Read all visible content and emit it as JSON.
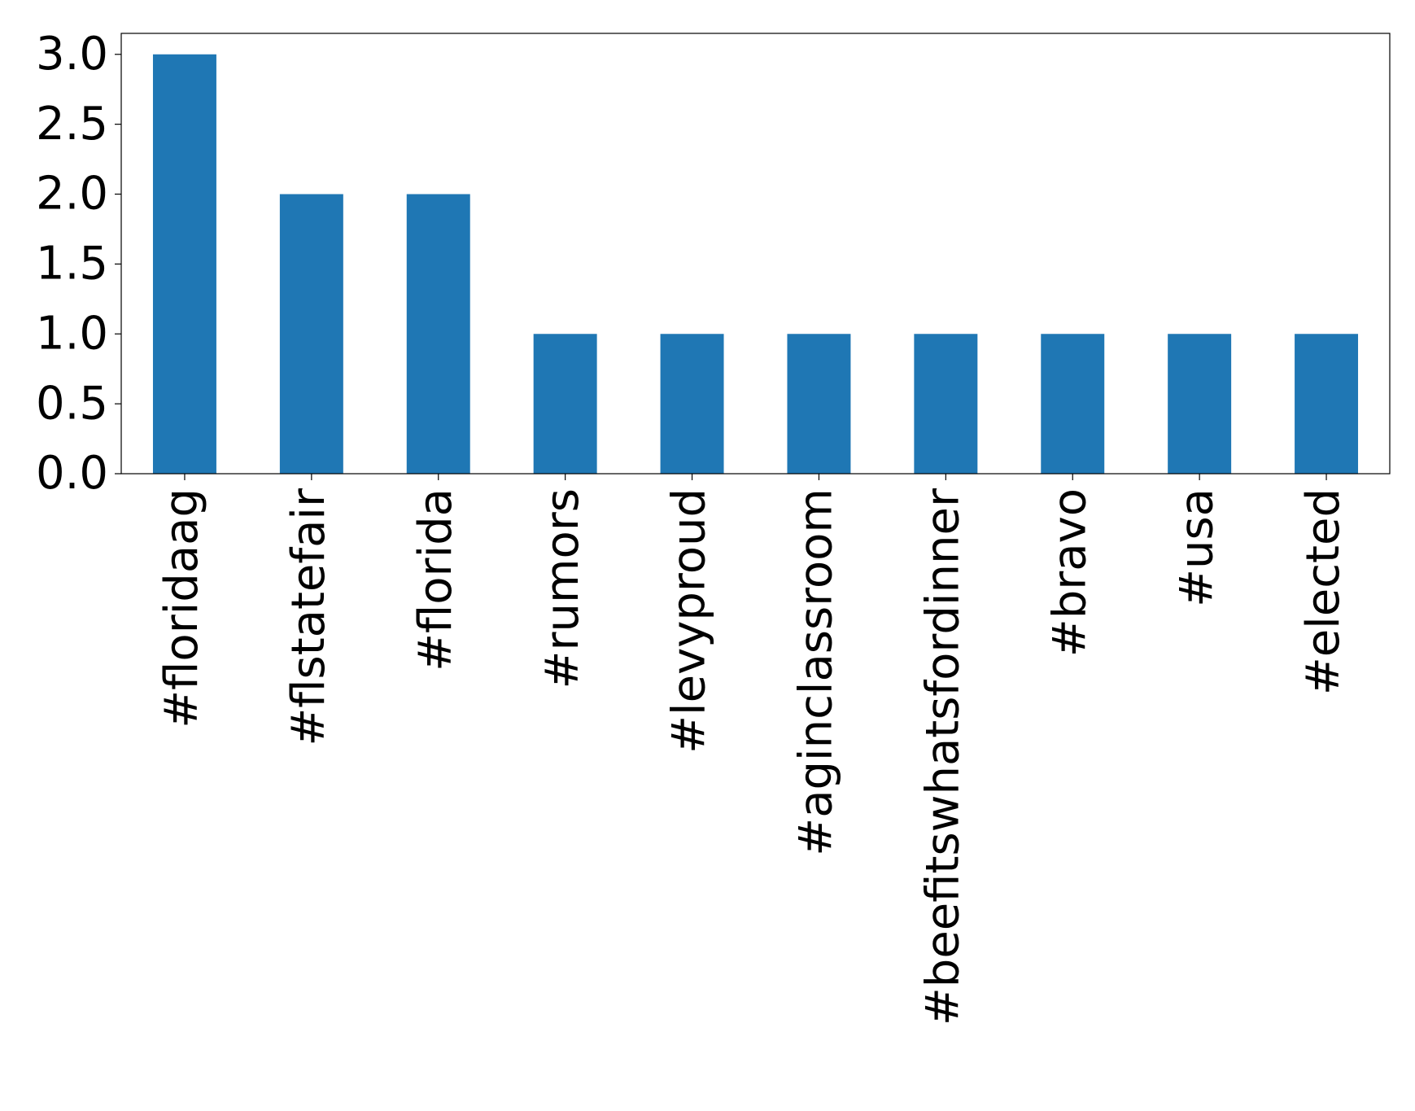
{
  "chart_data": {
    "type": "bar",
    "categories": [
      "#floridaag",
      "#flstatefair",
      "#florida",
      "#rumors",
      "#levyproud",
      "#aginclassroom",
      "#beefitswhatsfordinner",
      "#bravo",
      "#usa",
      "#elected"
    ],
    "values": [
      3,
      2,
      2,
      1,
      1,
      1,
      1,
      1,
      1,
      1
    ],
    "color": "#1f77b4",
    "ylim": [
      0,
      3.15
    ],
    "yticks": [
      {
        "value": 0,
        "label": "0.0"
      },
      {
        "value": 0.5,
        "label": "0.5"
      },
      {
        "value": 1,
        "label": "1.0"
      },
      {
        "value": 1.5,
        "label": "1.5"
      },
      {
        "value": 2,
        "label": "2.0"
      },
      {
        "value": 2.5,
        "label": "2.5"
      },
      {
        "value": 3,
        "label": "3.0"
      }
    ],
    "grid": false
  }
}
